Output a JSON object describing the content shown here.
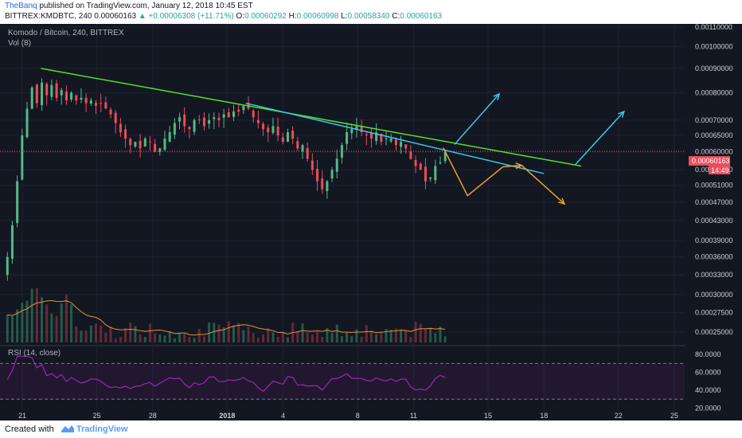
{
  "header": {
    "author": "TheBanq",
    "published": " published on TradingView.com, January 12, 2018 10:45 EST",
    "symbol_line_start": "BITTREX:KMDBTC, 240  0.00060163 ",
    "change": "▲ +0.00006308 (+11.71%)",
    "o_label": " O:",
    "o_val": "0.00060292",
    "h_label": " H:",
    "h_val": "0.00060998",
    "l_label": " L:",
    "l_val": "0.00058340",
    "c_label": " C:",
    "c_val": "0.00060163"
  },
  "chart_info": {
    "title": "Komodo / Bitcoin, 240, BITTREX",
    "vol_label": "Vol (8)",
    "rsi_label": "RSI (14, close)",
    "price_tag": "0.00060163",
    "countdown": "14:49"
  },
  "footer": {
    "created": "Created with",
    "brand": "TradingView"
  },
  "colors": {
    "background": "#131722",
    "up": "#53b987",
    "down": "#eb4d5c",
    "green_trend": "#5ade26",
    "blue_trend": "#3ac8e8",
    "orange_arrow": "#f0a030",
    "rsi": "#9c27b0",
    "price_tag": "#eb4d5c"
  },
  "chart_data": [
    {
      "type": "candlestick",
      "title": "Komodo / Bitcoin, 240, BITTREX",
      "x_ticks": [
        "21",
        "25",
        "28",
        "2018",
        "4",
        "8",
        "11",
        "15",
        "18",
        "22",
        "25"
      ],
      "y_ticks": [
        "0.00110000",
        "0.00100000",
        "0.00090000",
        "0.00080000",
        "0.00070000",
        "0.00065000",
        "0.00060000",
        "0.00055000",
        "0.00051000",
        "0.00047000",
        "0.00043000",
        "0.00039000",
        "0.00036000",
        "0.00033000",
        "0.00030000",
        "0.00027500",
        "0.00025000"
      ],
      "y_scale": "log",
      "last_price": 0.00060163,
      "closes": [
        0.00036,
        0.00042,
        0.00052,
        0.00065,
        0.00074,
        0.00082,
        0.00076,
        0.00084,
        0.00079,
        0.00083,
        0.00078,
        0.00081,
        0.00077,
        0.0008,
        0.00077,
        0.00078,
        0.00076,
        0.00077,
        0.00075,
        0.00076,
        0.00074,
        0.00072,
        0.00069,
        0.00066,
        0.00064,
        0.00062,
        0.00063,
        0.00061,
        0.00064,
        0.00063,
        0.0006,
        0.00061,
        0.00064,
        0.00066,
        0.00069,
        0.00071,
        0.00068,
        0.00067,
        0.0007,
        0.0007,
        0.00068,
        0.0007,
        0.00071,
        0.0007,
        0.00072,
        0.00071,
        0.00073,
        0.00073,
        0.00075,
        0.00074,
        0.00071,
        0.00069,
        0.00067,
        0.00066,
        0.00068,
        0.00065,
        0.00063,
        0.00066,
        0.00064,
        0.00061,
        0.00062,
        0.00058,
        0.00055,
        0.00052,
        0.0005,
        0.00052,
        0.00055,
        0.00058,
        0.00062,
        0.00066,
        0.00067,
        0.00068,
        0.00066,
        0.00065,
        0.00064,
        0.00066,
        0.00063,
        0.00064,
        0.00064,
        0.00062,
        0.00063,
        0.00061,
        0.00058,
        0.00056,
        0.00055,
        0.00052,
        0.00053,
        0.00056,
        0.00057,
        0.0006
      ],
      "trendlines": [
        {
          "name": "green",
          "from": {
            "date": "Dec 22",
            "price": 0.0009
          },
          "to": {
            "date": "Jan 20",
            "price": 0.00056
          }
        },
        {
          "name": "blue",
          "from": {
            "date": "Jan 2",
            "price": 0.00076
          },
          "to": {
            "date": "Jan 18",
            "price": 0.00054
          }
        }
      ],
      "arrows": [
        {
          "color": "cyan",
          "direction": "up",
          "at": "Jan 13"
        },
        {
          "color": "cyan",
          "direction": "up",
          "at": "Jan 20"
        },
        {
          "color": "orange",
          "path": "down-up-down",
          "at": "Jan 12 - Jan 18"
        }
      ]
    },
    {
      "type": "bar",
      "title": "Vol (8)",
      "note": "volume bars with moving average, same x axis"
    },
    {
      "type": "line",
      "title": "RSI (14, close)",
      "y_ticks": [
        "80.0000",
        "60.0000",
        "40.0000",
        "20.0000"
      ],
      "bands": [
        70,
        30
      ],
      "last_value": 54
    }
  ]
}
